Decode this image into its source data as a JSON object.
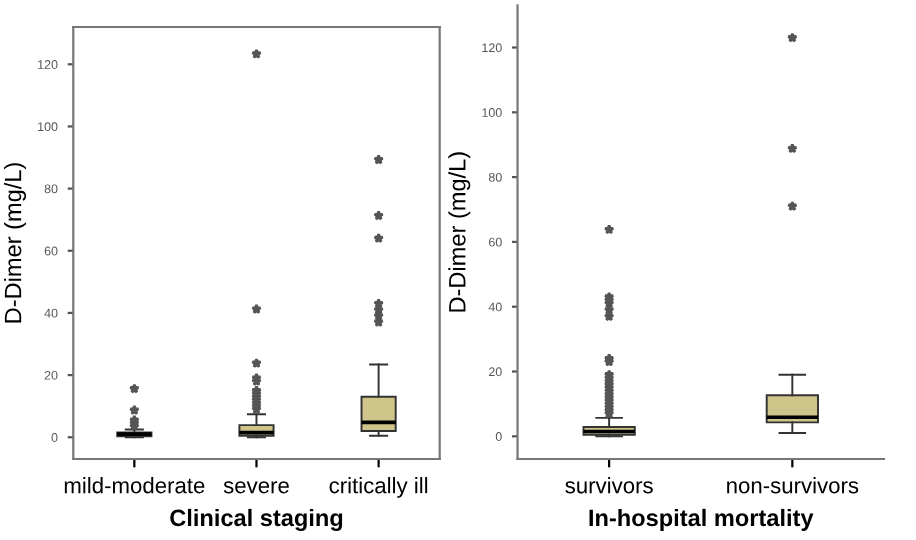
{
  "chart_data": [
    {
      "type": "box",
      "xlabel": "Clinical staging",
      "ylabel": "D-Dimer (mg/L)",
      "categories": [
        "mild-moderate",
        "severe",
        "critically ill"
      ],
      "color": "#cfc48a",
      "marker": "star",
      "ylim": [
        -7,
        132
      ],
      "yticks": [
        0,
        20,
        40,
        60,
        80,
        100,
        120
      ],
      "grid": false,
      "boxes": [
        {
          "low": 0,
          "q1": 0.3,
          "median": 1,
          "q3": 1.5,
          "high": 2.5,
          "outliers": [
            3.5,
            4.5,
            5.5,
            8.7,
            15.6
          ]
        },
        {
          "low": 0,
          "q1": 0.5,
          "median": 1.5,
          "q3": 3.9,
          "high": 7.4,
          "outliers": [
            9,
            10,
            11,
            12,
            13,
            14,
            15,
            18,
            19,
            23.8,
            41.2,
            123.3
          ]
        },
        {
          "low": 0.5,
          "q1": 2,
          "median": 4.8,
          "q3": 13,
          "high": 23.4,
          "outliers": [
            37,
            39,
            41,
            43,
            64,
            71.3,
            89.3
          ]
        }
      ]
    },
    {
      "type": "box",
      "xlabel": "In-hospital mortality",
      "ylabel": "D-Dimer (mg/L)",
      "categories": [
        "survivors",
        "non-survivors"
      ],
      "color": "#cfc48a",
      "marker": "star",
      "ylim": [
        -7,
        133
      ],
      "yticks": [
        0,
        20,
        40,
        60,
        80,
        100,
        120
      ],
      "grid": false,
      "boxes": [
        {
          "low": 0,
          "q1": 0.5,
          "median": 1.5,
          "q3": 2.9,
          "high": 5.7,
          "outliers": [
            7,
            8,
            9,
            10,
            11,
            12,
            13,
            14,
            15,
            16,
            17,
            18,
            19,
            23,
            24,
            37,
            39,
            41,
            42,
            43,
            63.8
          ]
        },
        {
          "low": 1,
          "q1": 4.3,
          "median": 5.9,
          "q3": 12.7,
          "high": 19,
          "outliers": [
            71,
            88.8,
            123
          ]
        }
      ]
    }
  ]
}
